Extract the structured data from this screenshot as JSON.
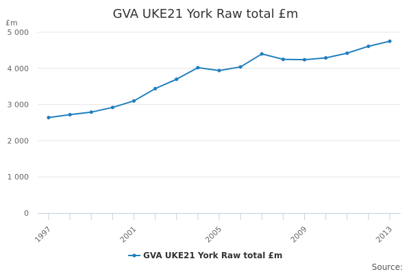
{
  "chart_data": {
    "type": "line",
    "title": "GVA UKE21 York Raw total £m",
    "ylabel": "£m",
    "xlabel": "",
    "x": [
      1997,
      1998,
      1999,
      2000,
      2001,
      2002,
      2003,
      2004,
      2005,
      2006,
      2007,
      2008,
      2009,
      2010,
      2011,
      2012,
      2013
    ],
    "series": [
      {
        "name": "GVA UKE21 York Raw total £m",
        "color": "#1f7fbf",
        "values": [
          2640,
          2720,
          2790,
          2920,
          3100,
          3440,
          3700,
          4020,
          3940,
          4040,
          4400,
          4250,
          4240,
          4290,
          4420,
          4610,
          4750
        ]
      }
    ],
    "ylim": [
      0,
      5000
    ],
    "y_ticks": [
      0,
      1000,
      2000,
      3000,
      4000,
      5000
    ],
    "y_tick_labels": [
      "0",
      "1 000",
      "2 000",
      "3 000",
      "4 000",
      "5 000"
    ],
    "x_tick_labels": [
      "1997",
      "2001",
      "2005",
      "2009",
      "2013"
    ],
    "x_tick_label_values": [
      1997,
      2001,
      2005,
      2009,
      2013
    ],
    "grid": true,
    "legend_position": "bottom-center",
    "source_label": "Source:"
  }
}
